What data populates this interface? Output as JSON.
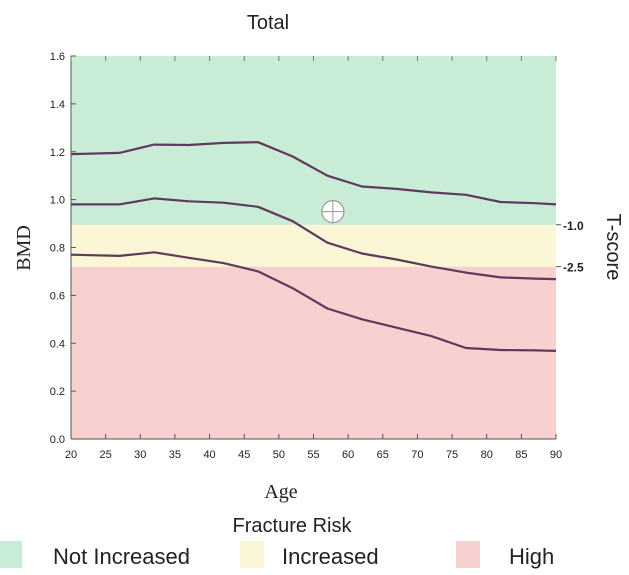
{
  "chart_data": {
    "type": "line",
    "title": "Total",
    "xlabel": "Age",
    "ylabel": "BMD",
    "right_axis_label": "T-score",
    "xlim": [
      20,
      90
    ],
    "ylim": [
      0.0,
      1.6
    ],
    "x_ticks": [
      20,
      25,
      30,
      35,
      40,
      45,
      50,
      55,
      60,
      65,
      70,
      75,
      80,
      85,
      90
    ],
    "y_ticks": [
      0.0,
      0.2,
      0.4,
      0.6,
      0.8,
      1.0,
      1.2,
      1.4,
      1.6
    ],
    "grid": false,
    "zones": [
      {
        "name": "High",
        "from": 0.0,
        "to": 0.72,
        "color": "#f7d0d0"
      },
      {
        "name": "Increased",
        "from": 0.72,
        "to": 0.895,
        "color": "#fbf6d6"
      },
      {
        "name": "Not Increased",
        "from": 0.895,
        "to": 1.6,
        "color": "#c8ecd6"
      }
    ],
    "tscore_markers": [
      {
        "label": "-1.0",
        "y": 0.895
      },
      {
        "label": "-2.5",
        "y": 0.72
      }
    ],
    "series": [
      {
        "values_x": [
          20,
          27,
          32,
          37,
          42,
          47,
          52,
          57,
          62,
          67,
          72,
          77,
          82,
          87,
          90
        ],
        "values_y": [
          1.19,
          1.195,
          1.23,
          1.228,
          1.237,
          1.24,
          1.18,
          1.1,
          1.055,
          1.045,
          1.03,
          1.02,
          0.99,
          0.985,
          0.98
        ]
      },
      {
        "values_x": [
          20,
          27,
          32,
          37,
          42,
          47,
          52,
          57,
          62,
          67,
          72,
          77,
          82,
          87,
          90
        ],
        "values_y": [
          0.98,
          0.98,
          1.005,
          0.993,
          0.987,
          0.97,
          0.91,
          0.82,
          0.775,
          0.75,
          0.72,
          0.695,
          0.675,
          0.67,
          0.668
        ]
      },
      {
        "values_x": [
          20,
          27,
          32,
          37,
          42,
          47,
          52,
          57,
          62,
          67,
          72,
          77,
          82,
          87,
          90
        ],
        "values_y": [
          0.77,
          0.765,
          0.78,
          0.757,
          0.735,
          0.7,
          0.63,
          0.545,
          0.5,
          0.465,
          0.43,
          0.38,
          0.372,
          0.37,
          0.368
        ]
      }
    ],
    "line_color": "#5e3a5e",
    "patient_point": {
      "x": 57.8,
      "y": 0.95
    },
    "legend": {
      "title": "Fracture Risk",
      "items": [
        {
          "label": "Not Increased",
          "color": "#c8ecd6"
        },
        {
          "label": "Increased",
          "color": "#fbf6d6"
        },
        {
          "label": "High",
          "color": "#f7d0d0"
        }
      ]
    }
  }
}
